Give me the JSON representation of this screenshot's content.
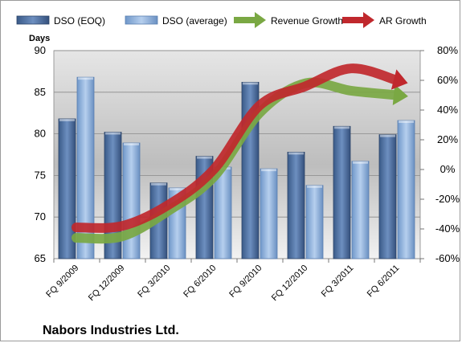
{
  "chart_data": {
    "type": "bar",
    "title": "",
    "company_label": "Nabors Industries Ltd.",
    "left_axis": {
      "label": "Days",
      "ylim": [
        65,
        90
      ],
      "ticks": [
        "65",
        "70",
        "75",
        "80",
        "85",
        "90"
      ]
    },
    "right_axis": {
      "label": "",
      "ylim": [
        -60,
        80
      ],
      "ticks": [
        "-60%",
        "-40%",
        "-20%",
        "0%",
        "20%",
        "40%",
        "60%",
        "80%"
      ]
    },
    "categories": [
      "FQ 9/2009",
      "FQ 12/2009",
      "FQ 3/2010",
      "FQ 6/2010",
      "FQ 9/2010",
      "FQ 12/2010",
      "FQ 3/2011",
      "FQ 6/2011"
    ],
    "series": [
      {
        "name": "DSO (EOQ)",
        "kind": "bar",
        "axis": "left",
        "color": "#4f6f9f",
        "values": [
          81.8,
          80.2,
          74.1,
          77.3,
          86.2,
          77.8,
          80.9,
          79.9
        ]
      },
      {
        "name": "DSO (average)",
        "kind": "bar",
        "axis": "left",
        "color": "#8eb0d8",
        "values": [
          86.8,
          78.9,
          73.5,
          76.0,
          75.8,
          73.8,
          76.7,
          81.6
        ]
      },
      {
        "name": "Revenue Growth",
        "kind": "line",
        "axis": "right",
        "color": "#7aa843",
        "values": [
          -46,
          -45,
          -28,
          -5,
          38,
          58,
          53,
          50
        ]
      },
      {
        "name": "AR Growth",
        "kind": "line",
        "axis": "right",
        "color": "#c0282d",
        "values": [
          -39,
          -38,
          -24,
          0,
          43,
          56,
          68,
          60
        ]
      }
    ],
    "legend_position": "top",
    "grid": true
  }
}
